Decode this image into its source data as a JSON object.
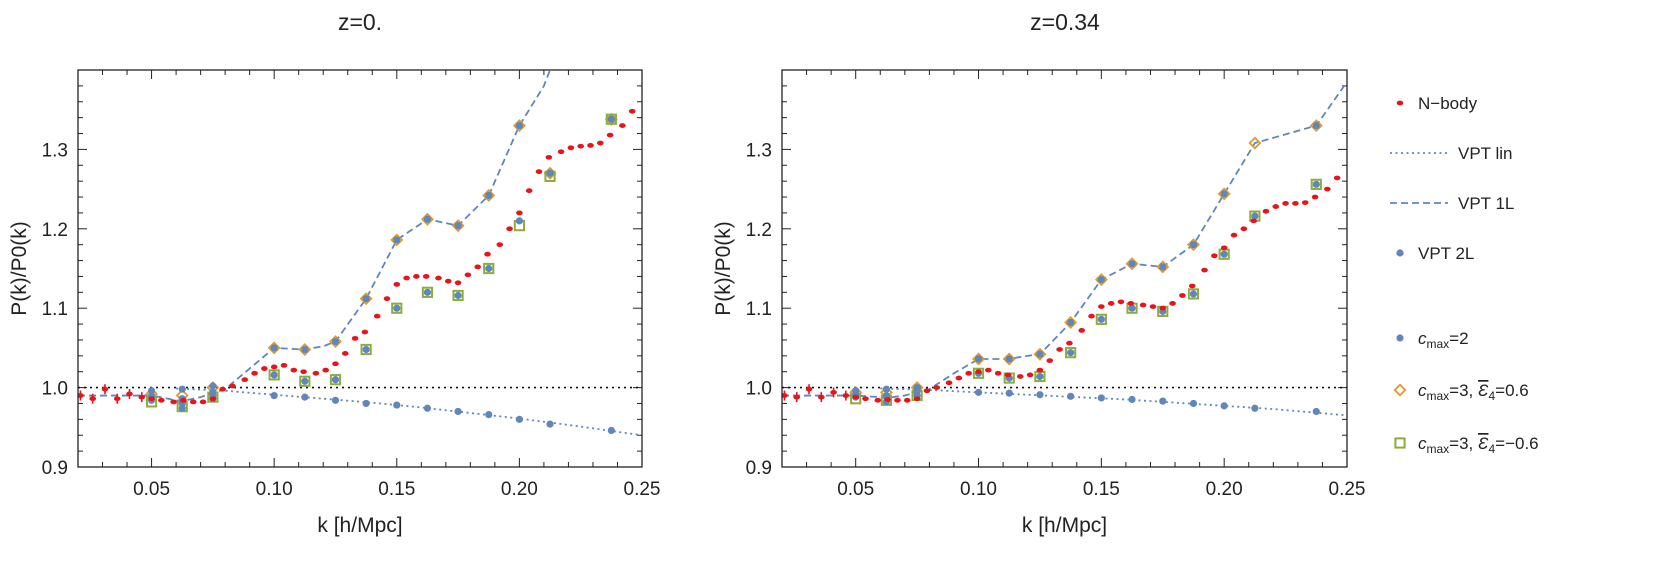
{
  "chart_data": {
    "type": "scatter",
    "panels": [
      {
        "title": "z=0.",
        "xlabel": "k [h/Mpc]",
        "ylabel": "P(k)/P0(k)",
        "xlim": [
          0.02,
          0.25
        ],
        "ylim": [
          0.9,
          1.4
        ],
        "xticks": [
          "0.05",
          "0.10",
          "0.15",
          "0.20",
          "0.25"
        ],
        "yticks": [
          "0.9",
          "1.0",
          "1.1",
          "1.2",
          "1.3"
        ],
        "reference_line": 1.0,
        "series": [
          {
            "name": "N-body",
            "x": [
              0.021,
              0.026,
              0.031,
              0.036,
              0.041,
              0.046,
              0.05,
              0.054,
              0.059,
              0.063,
              0.067,
              0.071,
              0.075,
              0.079,
              0.083,
              0.088,
              0.092,
              0.096,
              0.1,
              0.104,
              0.108,
              0.112,
              0.117,
              0.121,
              0.125,
              0.129,
              0.133,
              0.137,
              0.142,
              0.146,
              0.15,
              0.154,
              0.158,
              0.162,
              0.167,
              0.171,
              0.175,
              0.179,
              0.183,
              0.187,
              0.192,
              0.196,
              0.2,
              0.204,
              0.208,
              0.212,
              0.217,
              0.221,
              0.225,
              0.229,
              0.233,
              0.237,
              0.242,
              0.246
            ],
            "y": [
              0.99,
              0.986,
              0.998,
              0.986,
              0.992,
              0.988,
              0.986,
              0.984,
              0.982,
              0.984,
              0.982,
              0.982,
              0.986,
              0.998,
              1.002,
              1.01,
              1.018,
              1.024,
              1.026,
              1.028,
              1.022,
              1.02,
              1.018,
              1.022,
              1.03,
              1.043,
              1.062,
              1.07,
              1.09,
              1.112,
              1.13,
              1.138,
              1.14,
              1.14,
              1.138,
              1.134,
              1.132,
              1.142,
              1.152,
              1.168,
              1.18,
              1.2,
              1.22,
              1.248,
              1.272,
              1.29,
              1.297,
              1.302,
              1.304,
              1.305,
              1.308,
              1.318,
              1.33,
              1.348
            ]
          },
          {
            "name": "VPT lin",
            "x": [
              0.06,
              0.08,
              0.1,
              0.12,
              0.14,
              0.16,
              0.18,
              0.2,
              0.22,
              0.25
            ],
            "y": [
              0.999,
              0.996,
              0.991,
              0.986,
              0.981,
              0.975,
              0.968,
              0.961,
              0.953,
              0.94
            ]
          },
          {
            "name": "VPT 1L",
            "x": [
              0.02,
              0.05,
              0.06,
              0.0625,
              0.07,
              0.08,
              0.09,
              0.1,
              0.112,
              0.12,
              0.125,
              0.1375,
              0.15,
              0.1625,
              0.175,
              0.1875,
              0.2,
              0.21,
              0.2125
            ],
            "y": [
              0.99,
              0.99,
              0.984,
              0.983,
              0.988,
              0.998,
              1.024,
              1.05,
              1.048,
              1.052,
              1.058,
              1.112,
              1.186,
              1.212,
              1.204,
              1.242,
              1.33,
              1.38,
              1.4
            ]
          },
          {
            "name": "VPT 2L",
            "x": [
              0.05,
              0.05,
              0.0625,
              0.0625,
              0.0625,
              0.075,
              0.075,
              0.075,
              0.1,
              0.1,
              0.1125,
              0.1125,
              0.125,
              0.125,
              0.1375,
              0.1375,
              0.15,
              0.15,
              0.1625,
              0.1625,
              0.175,
              0.175,
              0.1875,
              0.1875,
              0.2,
              0.2,
              0.2125,
              0.2375
            ],
            "y": [
              0.996,
              0.984,
              0.998,
              0.986,
              0.974,
              1.002,
              0.99,
              0.986,
              1.05,
              1.016,
              1.048,
              1.008,
              1.058,
              1.01,
              1.112,
              1.048,
              1.186,
              1.1,
              1.212,
              1.12,
              1.204,
              1.116,
              1.242,
              1.15,
              1.33,
              1.21,
              1.27,
              1.338
            ]
          },
          {
            "name": "c_max=2",
            "x": [
              0.05,
              0.0625,
              0.075,
              0.1,
              0.1125,
              0.125,
              0.1375,
              0.15,
              0.1625,
              0.175,
              0.1875,
              0.2,
              0.2125,
              0.2375
            ],
            "y": [
              0.99,
              0.98,
              0.994,
              0.99,
              0.988,
              0.984,
              0.98,
              0.978,
              0.974,
              0.97,
              0.966,
              0.96,
              0.954,
              0.946
            ]
          },
          {
            "name": "c_max=3, E4=0.6",
            "x": [
              0.05,
              0.0625,
              0.075,
              0.1,
              0.1125,
              0.125,
              0.1375,
              0.15,
              0.1625,
              0.175,
              0.1875,
              0.2,
              0.2125,
              0.2375
            ],
            "y": [
              0.992,
              0.99,
              1.0,
              1.05,
              1.048,
              1.058,
              1.112,
              1.186,
              1.212,
              1.204,
              1.242,
              1.33,
              1.27,
              1.338
            ]
          },
          {
            "name": "c_max=3, E4=-0.6",
            "x": [
              0.05,
              0.0625,
              0.075,
              0.1,
              0.1125,
              0.125,
              0.1375,
              0.15,
              0.1625,
              0.175,
              0.1875,
              0.2,
              0.2125,
              0.2375
            ],
            "y": [
              0.982,
              0.976,
              0.988,
              1.016,
              1.008,
              1.01,
              1.048,
              1.1,
              1.12,
              1.116,
              1.15,
              1.204,
              1.266,
              1.338
            ]
          }
        ]
      },
      {
        "title": "z=0.34",
        "xlabel": "k [h/Mpc]",
        "ylabel": "P(k)/P0(k)",
        "xlim": [
          0.02,
          0.25
        ],
        "ylim": [
          0.9,
          1.4
        ],
        "xticks": [
          "0.05",
          "0.10",
          "0.15",
          "0.20",
          "0.25"
        ],
        "yticks": [
          "0.9",
          "1.0",
          "1.1",
          "1.2",
          "1.3"
        ],
        "reference_line": 1.0,
        "series": [
          {
            "name": "N-body",
            "x": [
              0.021,
              0.026,
              0.031,
              0.036,
              0.041,
              0.046,
              0.05,
              0.054,
              0.059,
              0.063,
              0.067,
              0.071,
              0.075,
              0.079,
              0.083,
              0.088,
              0.092,
              0.096,
              0.1,
              0.104,
              0.108,
              0.112,
              0.117,
              0.121,
              0.125,
              0.129,
              0.133,
              0.137,
              0.142,
              0.146,
              0.15,
              0.154,
              0.158,
              0.162,
              0.167,
              0.171,
              0.175,
              0.179,
              0.183,
              0.187,
              0.192,
              0.196,
              0.2,
              0.204,
              0.208,
              0.212,
              0.217,
              0.221,
              0.225,
              0.229,
              0.233,
              0.237,
              0.242,
              0.246
            ],
            "y": [
              0.99,
              0.988,
              0.998,
              0.988,
              0.994,
              0.99,
              0.988,
              0.986,
              0.984,
              0.985,
              0.984,
              0.984,
              0.986,
              0.996,
              1.0,
              1.006,
              1.012,
              1.018,
              1.02,
              1.022,
              1.018,
              1.016,
              1.014,
              1.016,
              1.022,
              1.034,
              1.048,
              1.056,
              1.072,
              1.09,
              1.102,
              1.106,
              1.108,
              1.106,
              1.104,
              1.102,
              1.1,
              1.106,
              1.116,
              1.128,
              1.148,
              1.166,
              1.176,
              1.192,
              1.2,
              1.21,
              1.222,
              1.228,
              1.232,
              1.232,
              1.233,
              1.24,
              1.25,
              1.264
            ]
          },
          {
            "name": "VPT lin",
            "x": [
              0.06,
              0.08,
              0.1,
              0.12,
              0.14,
              0.16,
              0.18,
              0.2,
              0.22,
              0.25
            ],
            "y": [
              0.999,
              0.997,
              0.994,
              0.991,
              0.988,
              0.985,
              0.981,
              0.977,
              0.973,
              0.965
            ]
          },
          {
            "name": "VPT 1L",
            "x": [
              0.02,
              0.05,
              0.06,
              0.0625,
              0.07,
              0.08,
              0.09,
              0.1,
              0.112,
              0.12,
              0.125,
              0.1375,
              0.15,
              0.1625,
              0.175,
              0.1875,
              0.2,
              0.2125,
              0.2375,
              0.25
            ],
            "y": [
              0.99,
              0.99,
              0.988,
              0.987,
              0.99,
              0.998,
              1.018,
              1.036,
              1.036,
              1.04,
              1.042,
              1.082,
              1.136,
              1.156,
              1.152,
              1.18,
              1.244,
              1.308,
              1.33,
              1.385
            ]
          },
          {
            "name": "VPT 2L",
            "x": [
              0.05,
              0.05,
              0.0625,
              0.0625,
              0.0625,
              0.075,
              0.075,
              0.1,
              0.1,
              0.1125,
              0.1125,
              0.125,
              0.125,
              0.1375,
              0.1375,
              0.15,
              0.15,
              0.1625,
              0.1625,
              0.175,
              0.175,
              0.1875,
              0.1875,
              0.2,
              0.2,
              0.2125,
              0.2375,
              0.2375
            ],
            "y": [
              0.996,
              0.988,
              0.998,
              0.99,
              0.982,
              1.0,
              0.99,
              1.036,
              1.018,
              1.036,
              1.012,
              1.042,
              1.014,
              1.082,
              1.044,
              1.136,
              1.086,
              1.156,
              1.1,
              1.152,
              1.096,
              1.18,
              1.118,
              1.244,
              1.168,
              1.216,
              1.33,
              1.256
            ]
          },
          {
            "name": "c_max=2",
            "x": [
              0.05,
              0.0625,
              0.075,
              0.1,
              0.1125,
              0.125,
              0.1375,
              0.15,
              0.1625,
              0.175,
              0.1875,
              0.2,
              0.2125,
              0.2375
            ],
            "y": [
              0.992,
              0.988,
              0.996,
              0.994,
              0.993,
              0.991,
              0.989,
              0.987,
              0.985,
              0.983,
              0.98,
              0.977,
              0.974,
              0.97
            ]
          },
          {
            "name": "c_max=3, E4=0.6",
            "x": [
              0.05,
              0.0625,
              0.075,
              0.1,
              0.1125,
              0.125,
              0.1375,
              0.15,
              0.1625,
              0.175,
              0.1875,
              0.2,
              0.2125,
              0.2375
            ],
            "y": [
              0.994,
              0.994,
              1.0,
              1.036,
              1.036,
              1.042,
              1.082,
              1.136,
              1.156,
              1.152,
              1.18,
              1.244,
              1.308,
              1.33
            ]
          },
          {
            "name": "c_max=3, E4=-0.6",
            "x": [
              0.05,
              0.0625,
              0.075,
              0.1,
              0.1125,
              0.125,
              0.1375,
              0.15,
              0.1625,
              0.175,
              0.1875,
              0.2,
              0.2125,
              0.2375
            ],
            "y": [
              0.986,
              0.984,
              0.99,
              1.018,
              1.012,
              1.014,
              1.044,
              1.086,
              1.1,
              1.096,
              1.118,
              1.168,
              1.216,
              1.256
            ]
          }
        ]
      }
    ],
    "legend": {
      "placement": "right",
      "entries": [
        {
          "label": "N−body",
          "marker": "dot",
          "color": "#e8141b"
        },
        {
          "label": "VPT lin",
          "marker": "dotted-line",
          "color": "#5f86bd"
        },
        {
          "label": "VPT 1L",
          "marker": "dashed-line",
          "color": "#5f86bd"
        },
        {
          "label": "VPT 2L",
          "marker": "circle",
          "color": "#5f86bd"
        },
        {
          "label": "c",
          "sub": "max",
          "tail": "=2",
          "marker": "circle",
          "color": "#5f86bd"
        },
        {
          "label": "c",
          "sub": "max",
          "tail": "=3, ",
          "sym": "Ɛ",
          "sub2": "4",
          "tail2": "=0.6",
          "marker": "open-diamond",
          "color": "#dd9a2a"
        },
        {
          "label": "c",
          "sub": "max",
          "tail": "=3, ",
          "sym": "Ɛ",
          "sub2": "4",
          "tail2": "=−0.6",
          "marker": "open-square",
          "color": "#8cac3c"
        }
      ]
    },
    "colors": {
      "nbody": "#e8141b",
      "vpt": "#5f86bd",
      "emph": "#dd9a2a",
      "emml": "#8cac3c",
      "axis": "#222222"
    }
  }
}
